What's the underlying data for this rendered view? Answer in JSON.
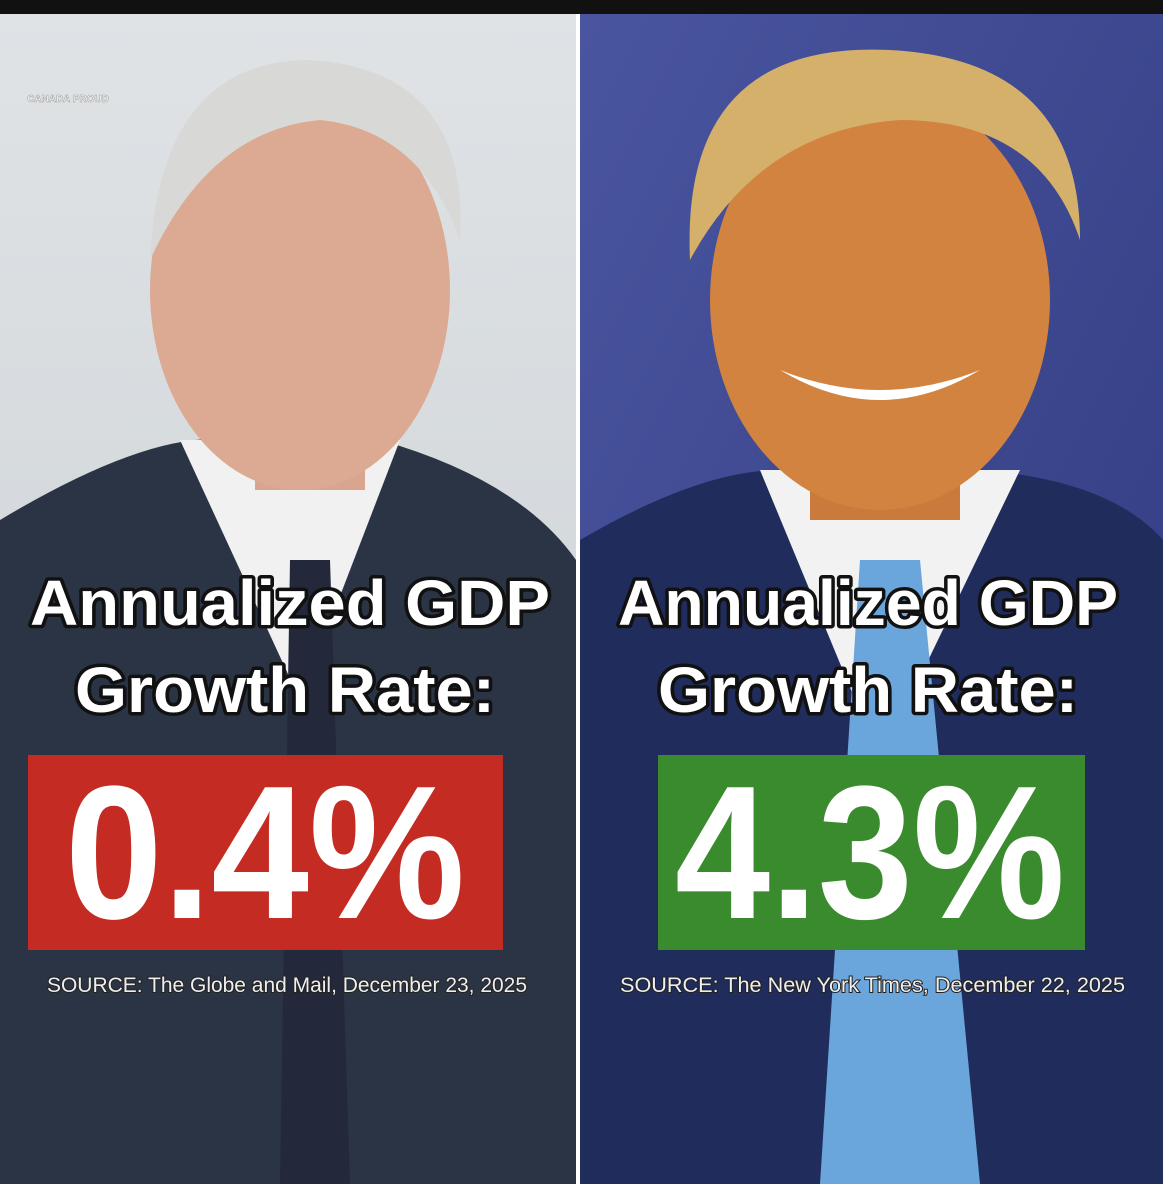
{
  "logo": "CANADA PROUD",
  "panels": [
    {
      "heading_line1": "Annualized GDP",
      "heading_line2": "Growth Rate:",
      "value": "0.4%",
      "source": "SOURCE: The Globe and Mail, December 23, 2025"
    },
    {
      "heading_line1": "Annualized GDP",
      "heading_line2": "Growth Rate:",
      "value": "4.3%",
      "source": "SOURCE: The New York Times, December 22, 2025"
    }
  ]
}
